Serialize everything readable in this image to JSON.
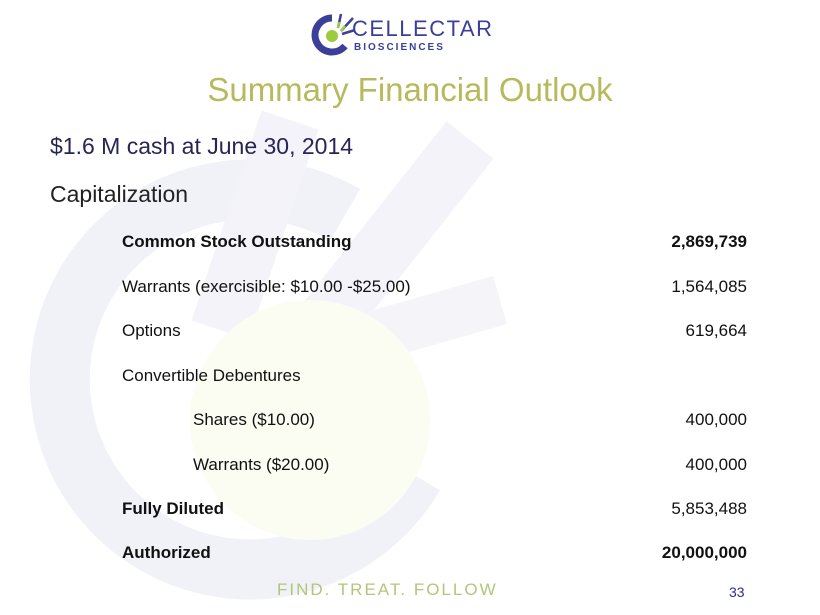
{
  "logo": {
    "name": "CELLECTAR",
    "sub": "BIOSCIENCES",
    "colors": {
      "primary": "#3b3f9a",
      "accent": "#9ccc3c"
    }
  },
  "title": "Summary Financial Outlook",
  "subtitle": "$1.6 M cash at June 30, 2014",
  "section": "Capitalization",
  "rows": [
    {
      "label": "Common Stock Outstanding",
      "value": "2,869,739"
    },
    {
      "label": "Warrants (exercisible: $10.00 -$25.00)",
      "value": "1,564,085"
    },
    {
      "label": "Options",
      "value": "619,664"
    },
    {
      "label": "Convertible Debentures",
      "value": ""
    },
    {
      "label": "Shares ($10.00)",
      "value": "400,000"
    },
    {
      "label": "Warrants ($20.00)",
      "value": "400,000"
    },
    {
      "label": "Fully Diluted",
      "value": "5,853,488"
    },
    {
      "label": "Authorized",
      "value": "20,000,000"
    }
  ],
  "footer": {
    "tagline": "FIND. TREAT. FOLLOW",
    "page": "33"
  }
}
